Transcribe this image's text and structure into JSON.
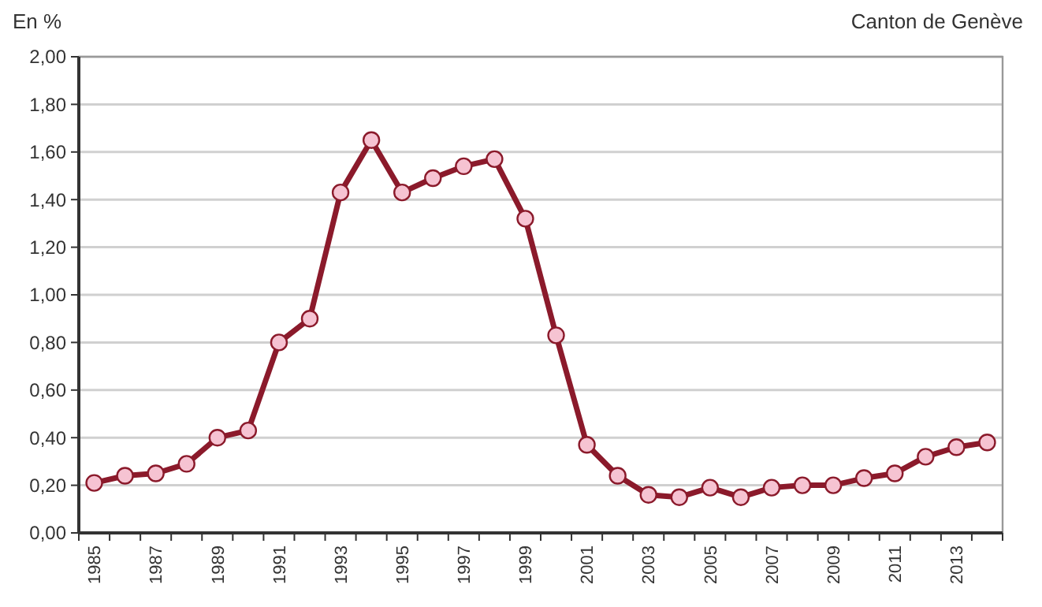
{
  "chart_data": {
    "type": "line",
    "title": "Canton de Genève",
    "ylabel": "En %",
    "categories": [
      "1985",
      null,
      "1987",
      null,
      "1989",
      null,
      "1991",
      null,
      "1993",
      null,
      "1995",
      null,
      "1997",
      null,
      "1999",
      null,
      "2001",
      null,
      "2003",
      null,
      "2005",
      null,
      "2007",
      null,
      "2009",
      null,
      "2011",
      null,
      "2013",
      null
    ],
    "series": [
      {
        "color": "#8b1a2b",
        "values": [
          0.21,
          0.24,
          0.25,
          0.29,
          0.4,
          0.43,
          0.8,
          0.9,
          1.43,
          1.65,
          1.43,
          1.49,
          1.54,
          1.57,
          1.32,
          0.83,
          0.37,
          0.24,
          0.16,
          0.15,
          0.19,
          0.15,
          0.19,
          0.2,
          0.2,
          0.23,
          0.25,
          0.32,
          0.36,
          0.38
        ]
      }
    ],
    "ylim": [
      0,
      2
    ],
    "yticks": [
      {
        "value": 0,
        "label": "0,00"
      },
      {
        "value": 0.2,
        "label": "0,20"
      },
      {
        "value": 0.4,
        "label": "0,40"
      },
      {
        "value": 0.6,
        "label": "0,60"
      },
      {
        "value": 0.8,
        "label": "0,80"
      },
      {
        "value": 1,
        "label": "1,00"
      },
      {
        "value": 1.2,
        "label": "1,20"
      },
      {
        "value": 1.4,
        "label": "1,40"
      },
      {
        "value": 1.6,
        "label": "1,60"
      },
      {
        "value": 1.8,
        "label": "1,80"
      },
      {
        "value": 2,
        "label": "2,00"
      }
    ],
    "grid": "y",
    "marker": "circle",
    "line_style": "solid"
  }
}
